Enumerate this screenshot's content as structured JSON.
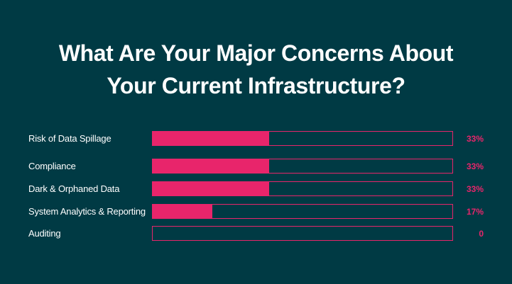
{
  "colors": {
    "background": "#003a44",
    "accent": "#e8256b",
    "text": "#ffffff"
  },
  "chart_data": {
    "type": "bar",
    "orientation": "horizontal",
    "title": [
      "What Are Your Major Concerns About",
      "Your Current Infrastructure?"
    ],
    "categories": [
      "Risk of Data Spillage",
      "Compliance",
      "Dark & Orphaned Data",
      "System Analytics & Reporting",
      "Auditing"
    ],
    "values": [
      33,
      33,
      33,
      17,
      0
    ],
    "value_labels": [
      "33%",
      "33%",
      "33%",
      "17%",
      "0"
    ],
    "xlim": [
      0,
      85
    ],
    "grid": false,
    "legend": "none"
  }
}
